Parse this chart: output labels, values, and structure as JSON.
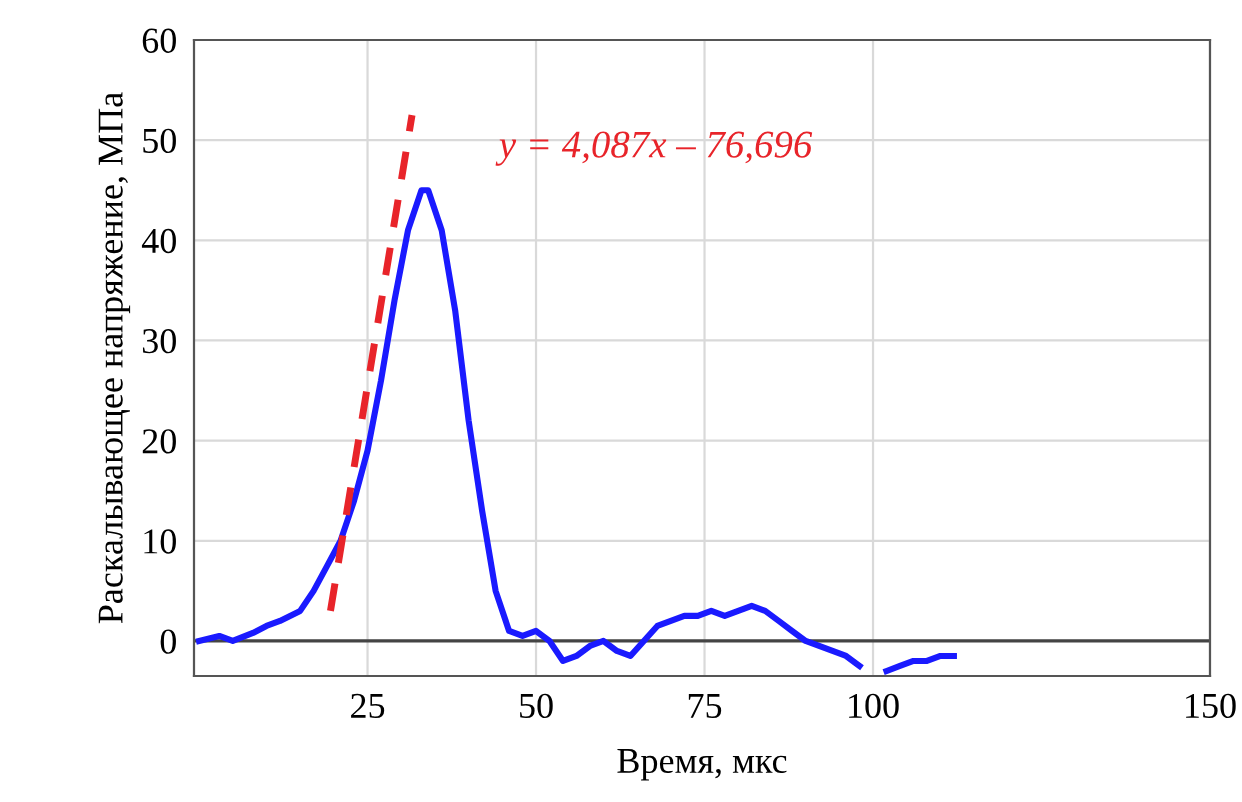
{
  "chart_data": {
    "type": "line",
    "xlabel": "Время, мкс",
    "ylabel": "Раскалывающее напряжение, МПа",
    "xlim": [
      -0.75,
      150
    ],
    "ylim": [
      -3.5,
      60
    ],
    "xticks": [
      25,
      50,
      75,
      100,
      150
    ],
    "yticks": [
      0,
      10,
      20,
      30,
      40,
      50,
      60
    ],
    "grid": true,
    "legend": false,
    "series": [
      {
        "color": "#1a1aff",
        "line_style": "solid",
        "x": [
          0,
          3,
          5,
          8,
          10,
          12,
          15,
          17,
          19,
          21,
          23,
          25,
          27,
          29,
          31,
          33,
          34,
          36,
          38,
          40,
          42,
          44,
          46,
          48,
          50,
          52,
          54,
          56,
          58,
          60,
          62,
          64,
          66,
          68,
          70,
          72,
          74,
          76,
          78,
          80,
          82,
          84,
          86,
          88,
          90,
          92,
          94,
          96,
          98,
          100,
          102,
          104,
          106,
          108,
          110,
          112
        ],
        "values": [
          0,
          0.5,
          0,
          0.8,
          1.5,
          2,
          3,
          5,
          7.5,
          10,
          14,
          19,
          26,
          34,
          41,
          45,
          45,
          41,
          33,
          22,
          13,
          5,
          1,
          0.5,
          1,
          0,
          -2,
          -1.5,
          -0.5,
          0,
          -1,
          -1.5,
          0,
          1.5,
          2,
          2.5,
          2.5,
          3,
          2.5,
          3,
          3.5,
          3,
          2,
          1,
          0,
          -0.5,
          -1,
          -1.5,
          -2.5,
          null,
          -3,
          -2.5,
          -2,
          -2,
          -1.5,
          -1.5
        ]
      },
      {
        "color": "#e8242a",
        "line_style": "dashed",
        "x": [
          19.5,
          31.6
        ],
        "values": [
          3.0,
          52.5
        ]
      }
    ],
    "annotations": [
      "y = 4,087x – 76,696"
    ]
  }
}
